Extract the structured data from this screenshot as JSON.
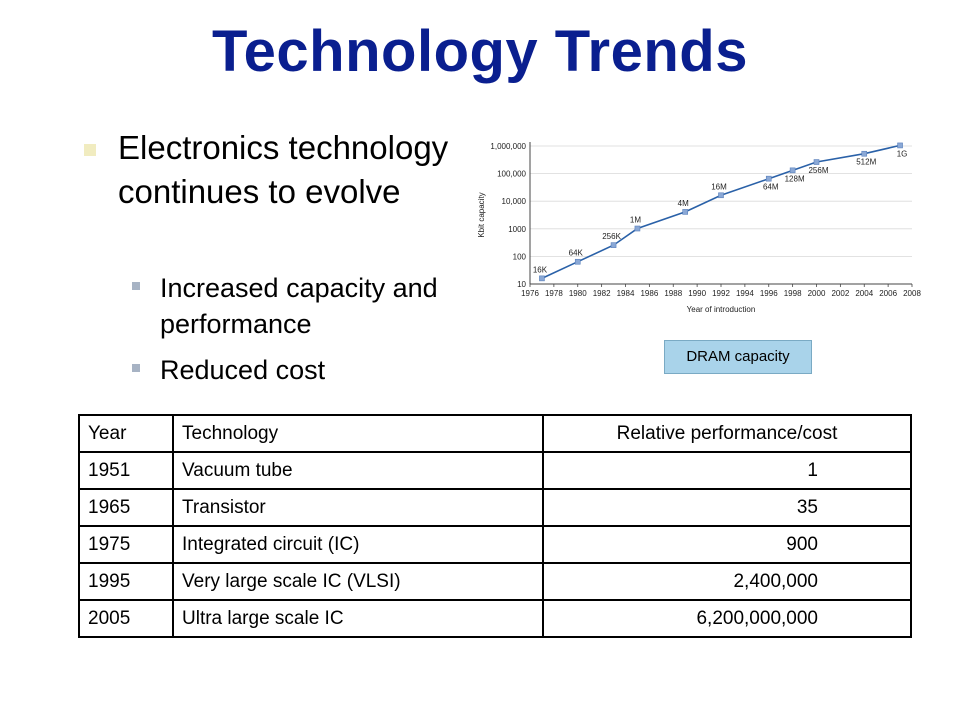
{
  "slide": {
    "title": "Technology Trends"
  },
  "bullets": {
    "main": "Electronics technology continues to evolve",
    "sub": [
      "Increased capacity and performance",
      "Reduced cost"
    ]
  },
  "badge": "DRAM capacity",
  "table": {
    "headers": [
      "Year",
      "Technology",
      "Relative performance/cost"
    ],
    "rows": [
      [
        "1951",
        "Vacuum tube",
        "1"
      ],
      [
        "1965",
        "Transistor",
        "35"
      ],
      [
        "1975",
        "Integrated circuit (IC)",
        "900"
      ],
      [
        "1995",
        "Very large scale IC (VLSI)",
        "2,400,000"
      ],
      [
        "2005",
        "Ultra large scale IC",
        "6,200,000,000"
      ]
    ]
  },
  "chart_data": {
    "type": "line",
    "xlabel": "Year of introduction",
    "ylabel": "Kbit capacity",
    "scale_y": "log",
    "xlim": [
      1976,
      2008
    ],
    "ylim": [
      10,
      1000000
    ],
    "x_ticks": [
      "1976",
      "1978",
      "1980",
      "1982",
      "1984",
      "1986",
      "1988",
      "1990",
      "1992",
      "1994",
      "1996",
      "1998",
      "2000",
      "2002",
      "2004",
      "2006",
      "2008"
    ],
    "y_ticks": [
      "10",
      "100",
      "1000",
      "10,000",
      "100,000",
      "1,000,000"
    ],
    "y_tick_values": [
      10,
      100,
      1000,
      10000,
      100000,
      1000000
    ],
    "series_color": "#2a61a8",
    "points": [
      {
        "x": 1977,
        "y": 16,
        "label": "16K"
      },
      {
        "x": 1980,
        "y": 64,
        "label": "64K"
      },
      {
        "x": 1983,
        "y": 256,
        "label": "256K"
      },
      {
        "x": 1985,
        "y": 1024,
        "label": "1M"
      },
      {
        "x": 1989,
        "y": 4096,
        "label": "4M"
      },
      {
        "x": 1992,
        "y": 16384,
        "label": "16M"
      },
      {
        "x": 1996,
        "y": 65536,
        "label": "64M"
      },
      {
        "x": 1998,
        "y": 131072,
        "label": "128M"
      },
      {
        "x": 2000,
        "y": 262144,
        "label": "256M"
      },
      {
        "x": 2004,
        "y": 524288,
        "label": "512M"
      },
      {
        "x": 2007,
        "y": 1048576,
        "label": "1G"
      }
    ]
  }
}
